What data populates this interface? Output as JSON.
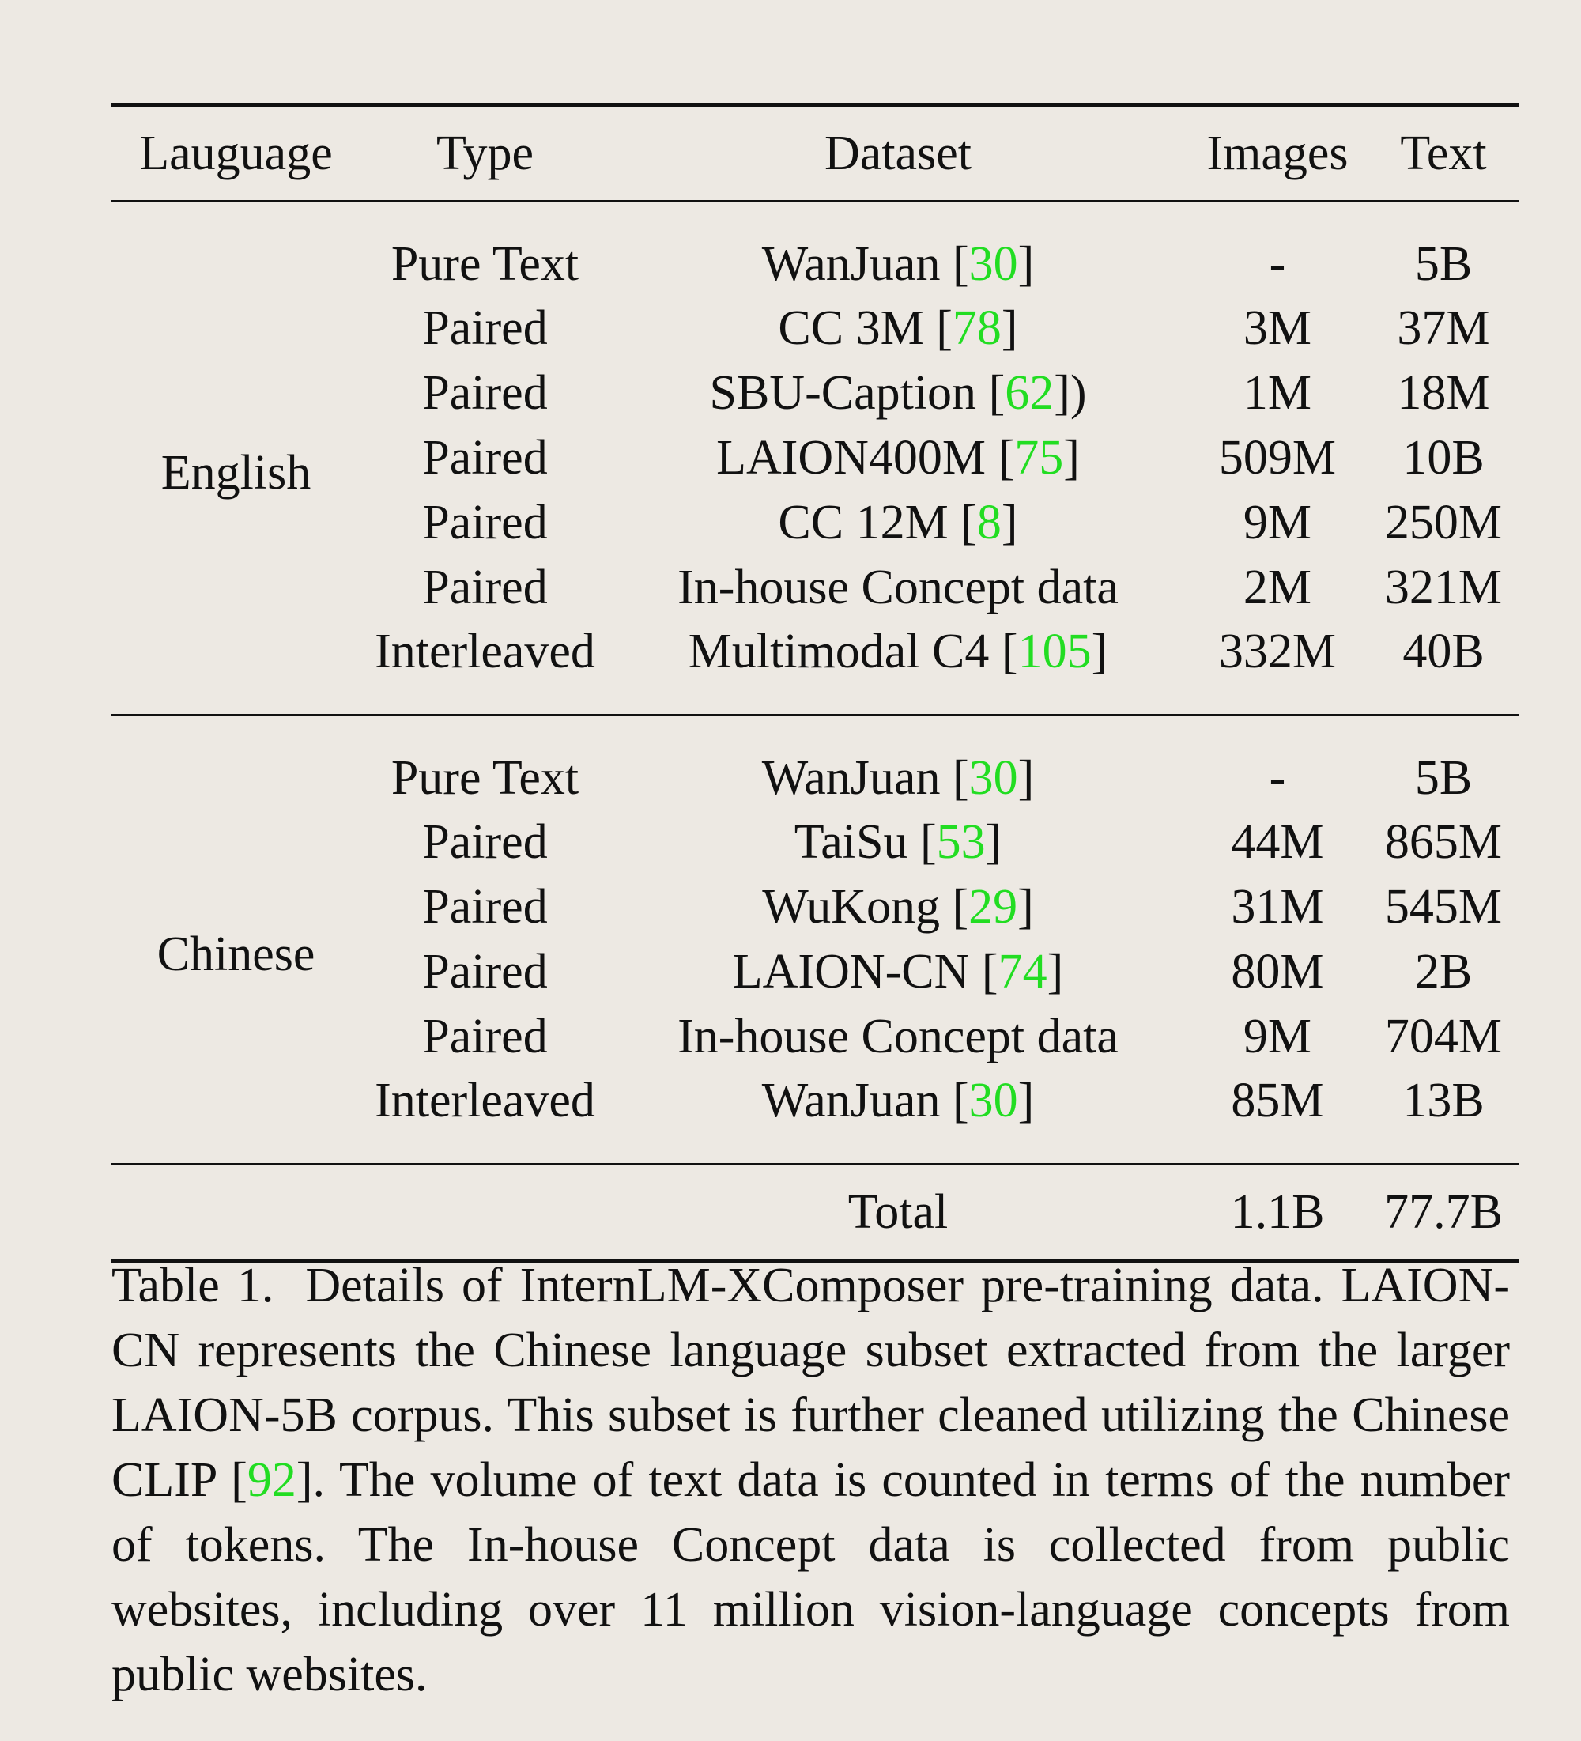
{
  "table": {
    "headers": [
      "Lauguage",
      "Type",
      "Dataset",
      "Images",
      "Text"
    ],
    "groups": [
      {
        "language": "English",
        "rows": [
          {
            "type": "Pure Text",
            "dataset": "WanJuan",
            "cite": "30",
            "suffix": "]",
            "images": "-",
            "text": "5B"
          },
          {
            "type": "Paired",
            "dataset": "CC 3M",
            "cite": "78",
            "suffix": "]",
            "images": "3M",
            "text": "37M"
          },
          {
            "type": "Paired",
            "dataset": "SBU-Caption",
            "cite": "62",
            "suffix": "])",
            "images": "1M",
            "text": "18M"
          },
          {
            "type": "Paired",
            "dataset": "LAION400M",
            "cite": "75",
            "suffix": "]",
            "images": "509M",
            "text": "10B"
          },
          {
            "type": "Paired",
            "dataset": "CC 12M",
            "cite": "8",
            "suffix": "]",
            "images": "9M",
            "text": "250M"
          },
          {
            "type": "Paired",
            "dataset": "In-house Concept data",
            "cite": "",
            "suffix": "",
            "images": "2M",
            "text": "321M"
          },
          {
            "type": "Interleaved",
            "dataset": "Multimodal C4",
            "cite": "105",
            "suffix": "]",
            "images": "332M",
            "text": "40B"
          }
        ]
      },
      {
        "language": "Chinese",
        "rows": [
          {
            "type": "Pure Text",
            "dataset": "WanJuan",
            "cite": "30",
            "suffix": "]",
            "images": "-",
            "text": "5B"
          },
          {
            "type": "Paired",
            "dataset": "TaiSu",
            "cite": "53",
            "suffix": "]",
            "images": "44M",
            "text": "865M"
          },
          {
            "type": "Paired",
            "dataset": "WuKong",
            "cite": "29",
            "suffix": "]",
            "images": "31M",
            "text": "545M"
          },
          {
            "type": "Paired",
            "dataset": "LAION-CN",
            "cite": "74",
            "suffix": "]",
            "images": "80M",
            "text": "2B"
          },
          {
            "type": "Paired",
            "dataset": "In-house Concept data",
            "cite": "",
            "suffix": "",
            "images": "9M",
            "text": "704M"
          },
          {
            "type": "Interleaved",
            "dataset": "WanJuan",
            "cite": "30",
            "suffix": "]",
            "images": "85M",
            "text": "13B"
          }
        ]
      }
    ],
    "total": {
      "label": "Total",
      "images": "1.1B",
      "text": "77.7B"
    }
  },
  "caption": {
    "label": "Table 1.",
    "text_before_cite": "Details of InternLM-XComposer pre-training data. LAION-CN represents the Chinese language subset extracted from the larger LAION-5B corpus. This subset is further cleaned utilizing the Chinese CLIP [",
    "cite": "92",
    "text_after_cite": "].  The volume of text data is counted in terms of the number of tokens. The In-house Concept data is collected from public websites, including over 11 million vision-language concepts from public websites."
  },
  "colors": {
    "background": "#ede9e3",
    "citation": "#22dd22",
    "text": "#111111"
  }
}
